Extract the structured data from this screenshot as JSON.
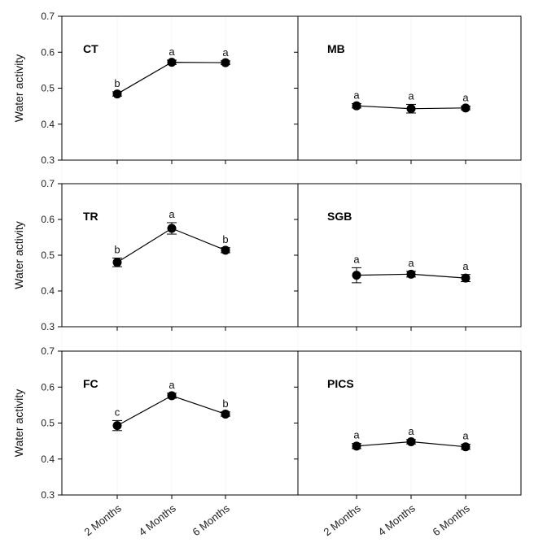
{
  "chart_data": {
    "type": "line",
    "shared": {
      "categories": [
        "2 Months",
        "4 Months",
        "6 Months"
      ],
      "ylabel": "Water activity",
      "ylim": [
        0.3,
        0.7
      ],
      "yticks": [
        "0.3",
        "0.4",
        "0.5",
        "0.6",
        "0.7"
      ]
    },
    "panels": [
      {
        "label": "CT",
        "values": [
          0.484,
          0.572,
          0.571
        ],
        "errors": [
          0.006,
          0.006,
          0.005
        ],
        "letters": [
          "b",
          "a",
          "a"
        ]
      },
      {
        "label": "MB",
        "values": [
          0.451,
          0.443,
          0.445
        ],
        "errors": [
          0.006,
          0.012,
          0.005
        ],
        "letters": [
          "a",
          "a",
          "a"
        ]
      },
      {
        "label": "TR",
        "values": [
          0.48,
          0.575,
          0.514
        ],
        "errors": [
          0.012,
          0.016,
          0.007
        ],
        "letters": [
          "b",
          "a",
          "b"
        ]
      },
      {
        "label": "SGB",
        "values": [
          0.444,
          0.447,
          0.436
        ],
        "errors": [
          0.021,
          0.008,
          0.01
        ],
        "letters": [
          "a",
          "a",
          "a"
        ]
      },
      {
        "label": "FC",
        "values": [
          0.493,
          0.576,
          0.525
        ],
        "errors": [
          0.014,
          0.007,
          0.006
        ],
        "letters": [
          "c",
          "a",
          "b"
        ]
      },
      {
        "label": "PICS",
        "values": [
          0.436,
          0.448,
          0.434
        ],
        "errors": [
          0.007,
          0.006,
          0.007
        ],
        "letters": [
          "a",
          "a",
          "a"
        ]
      }
    ]
  }
}
